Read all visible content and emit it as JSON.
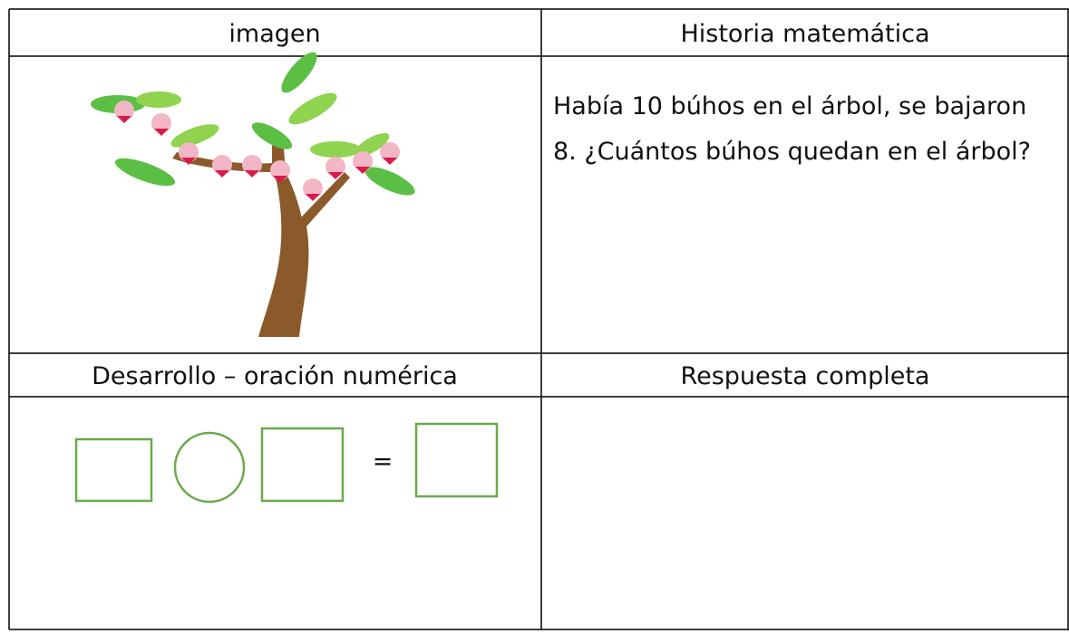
{
  "headers": [
    "imagen",
    "Historia matemática"
  ],
  "story": [
    "Había 10 búhos en el árbol, se bajaron",
    "8. ¿Cuántos búhos quedan en el árbol?"
  ],
  "headers2": [
    "Desarrollo – oración numérica",
    "Respuesta completa"
  ],
  "equation": {
    "operator": "="
  }
}
